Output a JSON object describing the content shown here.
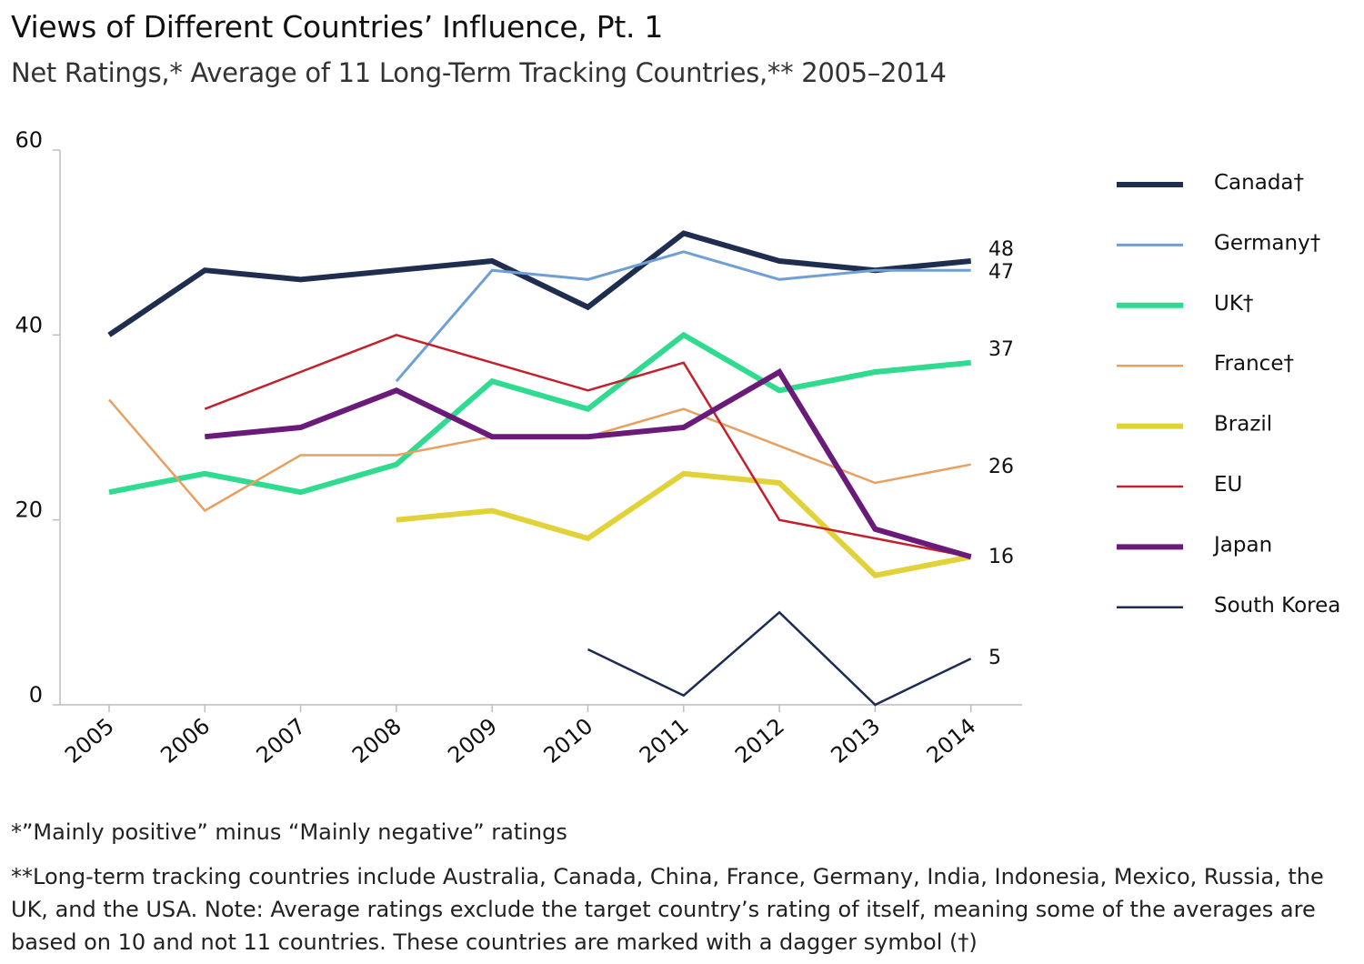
{
  "title": "Views of Different Countries’ Influence, Pt. 1",
  "subtitle": "Net Ratings,* Average of 11 Long-Term Tracking Countries,** 2005–2014",
  "notes": {
    "footnote1": "*”Mainly positive” minus “Mainly negative” ratings",
    "footnote2": "**Long-term tracking countries include Australia, Canada, China, France, Germany, India, Indonesia, Mexico, Russia, the UK, and the USA.  Note: Average ratings exclude the target country’s rating of itself, meaning some of the averages are based on 10 and not 11 countries. These countries are marked with a dagger symbol (†)"
  },
  "chart_data": {
    "type": "line",
    "x": [
      "2005",
      "2006",
      "2007",
      "2008",
      "2009",
      "2010",
      "2011",
      "2012",
      "2013",
      "2014"
    ],
    "ylim": [
      0,
      60
    ],
    "yticks": [
      "0",
      "20",
      "40",
      "60"
    ],
    "grid": false,
    "legend": "right",
    "series": [
      {
        "name": "Canada†",
        "color": "#1f2d4e",
        "width": 6,
        "values": [
          40,
          47,
          46,
          47,
          48,
          43,
          51,
          48,
          47,
          48
        ],
        "end_label": "48"
      },
      {
        "name": "Germany†",
        "color": "#6f9fd4",
        "width": 3,
        "values": [
          null,
          null,
          null,
          35,
          47,
          46,
          49,
          46,
          47,
          47
        ],
        "end_label": "47"
      },
      {
        "name": "UK†",
        "color": "#2fdb8f",
        "width": 6,
        "values": [
          23,
          25,
          23,
          26,
          35,
          32,
          40,
          34,
          36,
          37
        ],
        "end_label": "37"
      },
      {
        "name": "France†",
        "color": "#e8a060",
        "width": 2.5,
        "values": [
          33,
          21,
          27,
          27,
          29,
          29,
          32,
          28,
          24,
          26
        ],
        "end_label": "26"
      },
      {
        "name": "Brazil",
        "color": "#e2d23a",
        "width": 6,
        "values": [
          null,
          null,
          null,
          20,
          21,
          18,
          25,
          24,
          14,
          16
        ],
        "end_label": ""
      },
      {
        "name": "EU",
        "color": "#c4202c",
        "width": 2.5,
        "values": [
          null,
          32,
          36,
          40,
          37,
          34,
          37,
          20,
          18,
          16
        ],
        "end_label": ""
      },
      {
        "name": "Japan",
        "color": "#6a1b7a",
        "width": 6,
        "values": [
          null,
          29,
          30,
          34,
          29,
          29,
          30,
          36,
          19,
          16
        ],
        "end_label": "16"
      },
      {
        "name": "South Korea",
        "color": "#1c2c52",
        "width": 2.5,
        "values": [
          null,
          null,
          null,
          null,
          null,
          6,
          1,
          10,
          0,
          5
        ],
        "end_label": "5"
      }
    ]
  }
}
